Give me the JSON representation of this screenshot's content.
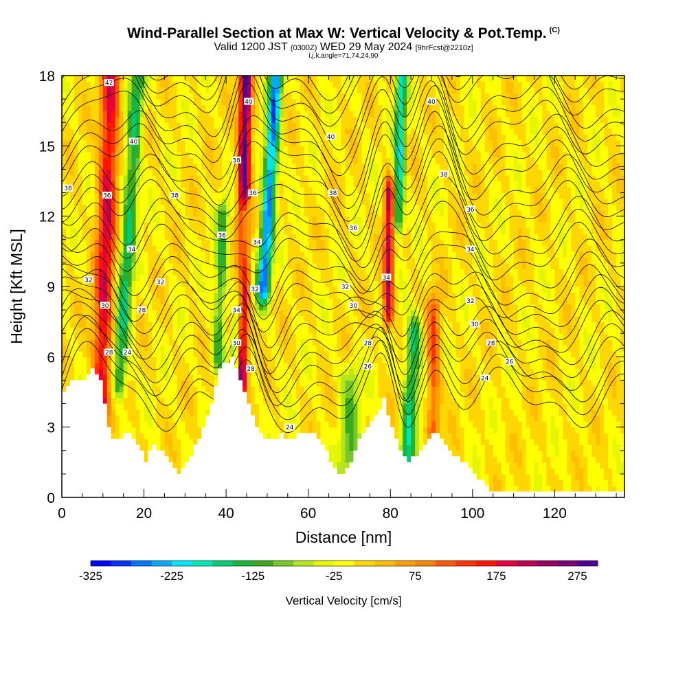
{
  "header": {
    "title": "Wind-Parallel Section at Max W: Vertical Velocity & Pot.Temp.",
    "copyright": "(C)",
    "valid_prefix": "Valid 1200 JST",
    "valid_utc": "(0300Z)",
    "valid_date": "WED 29 May 2024",
    "forecast": "[9hrFcst@2210z]",
    "params": "i,j,k,angle=71,74,24,90"
  },
  "chart_data": {
    "type": "heatmap",
    "xlabel": "Distance [nm]",
    "ylabel": "Height [Kft MSL]",
    "xlim": [
      0,
      137
    ],
    "ylim": [
      0,
      18
    ],
    "x_ticks": [
      0,
      20,
      40,
      60,
      80,
      100,
      120
    ],
    "y_ticks": [
      0,
      3,
      6,
      9,
      12,
      15,
      18
    ],
    "colorbar": {
      "label": "Vertical Velocity [cm/s]",
      "range": [
        -325,
        300
      ],
      "tick_values": [
        -325,
        -225,
        -125,
        -25,
        75,
        175,
        275
      ],
      "tick_labels": [
        "-325",
        "-225",
        "-125",
        "-25",
        "75",
        "175",
        "275"
      ],
      "colors": [
        "#0000ff",
        "#0033ff",
        "#0077ff",
        "#00aaff",
        "#00e6ff",
        "#00e6b4",
        "#00cc78",
        "#19b43c",
        "#3caa1e",
        "#78c828",
        "#b4e61e",
        "#e6f500",
        "#ffff00",
        "#ffd700",
        "#ffbe00",
        "#ffa000",
        "#ff8200",
        "#ff5a00",
        "#ff3200",
        "#ff1400",
        "#e6003c",
        "#be0050",
        "#960064",
        "#780078",
        "#500096"
      ]
    },
    "terrain": [
      [
        0,
        4.5
      ],
      [
        2,
        5
      ],
      [
        5,
        5
      ],
      [
        7,
        5.5
      ],
      [
        9,
        5
      ],
      [
        10,
        4
      ],
      [
        11,
        3
      ],
      [
        12,
        2.6
      ],
      [
        14,
        2.5
      ],
      [
        16,
        2.8
      ],
      [
        18,
        2.2
      ],
      [
        20,
        1.6
      ],
      [
        22,
        2.2
      ],
      [
        24,
        2.0
      ],
      [
        26,
        1.5
      ],
      [
        28,
        1.0
      ],
      [
        30,
        1.5
      ],
      [
        33,
        2.5
      ],
      [
        36,
        4.0
      ],
      [
        38,
        5.5
      ],
      [
        41,
        6.0
      ],
      [
        43,
        5.0
      ],
      [
        45,
        4.0
      ],
      [
        47,
        3.0
      ],
      [
        49,
        2.6
      ],
      [
        51,
        2.5
      ],
      [
        53,
        2.7
      ],
      [
        55,
        2.5
      ],
      [
        57,
        2.7
      ],
      [
        60,
        2.8
      ],
      [
        62,
        2.5
      ],
      [
        64,
        2.0
      ],
      [
        66,
        1.2
      ],
      [
        68,
        1.0
      ],
      [
        70,
        1.5
      ],
      [
        72,
        2.5
      ],
      [
        74,
        3.0
      ],
      [
        76,
        3.5
      ],
      [
        78,
        4.2
      ],
      [
        80,
        3.0
      ],
      [
        82,
        2.0
      ],
      [
        84,
        1.6
      ],
      [
        86,
        1.8
      ],
      [
        88,
        2.2
      ],
      [
        90,
        2.7
      ],
      [
        92,
        2.6
      ],
      [
        95,
        1.8
      ],
      [
        98,
        1.4
      ],
      [
        101,
        0.8
      ],
      [
        104,
        0.3
      ],
      [
        110,
        0.3
      ],
      [
        125,
        0.3
      ],
      [
        133,
        0.3
      ],
      [
        137,
        0.3
      ]
    ],
    "updrafts": [
      {
        "x": 9.5,
        "z0": 4,
        "z1": 18,
        "slope": 0.18,
        "w": 2.2,
        "peak": 190
      },
      {
        "x": 43.5,
        "z0": 5,
        "z1": 18,
        "slope": 0.1,
        "w": 1.5,
        "peak": 290
      },
      {
        "x": 79.5,
        "z0": 8,
        "z1": 13,
        "slope": 0.05,
        "w": 1.2,
        "peak": 210
      },
      {
        "x": 90.5,
        "z0": 3,
        "z1": 8,
        "slope": 0.02,
        "w": 1.5,
        "peak": 120
      }
    ],
    "downdrafts": [
      {
        "x": 14,
        "z0": 5,
        "z1": 18,
        "slope": 0.35,
        "w": 1.8,
        "peak": -150
      },
      {
        "x": 42,
        "z0": 5,
        "z1": 12,
        "slope": 0.35,
        "w": 1.3,
        "peak": -190
      },
      {
        "x": 49,
        "z0": 9,
        "z1": 18,
        "slope": 0.35,
        "w": 1.6,
        "peak": -260
      },
      {
        "x": 84,
        "z0": 1.5,
        "z1": 7,
        "slope": 0.35,
        "w": 1.8,
        "peak": -160
      },
      {
        "x": 82,
        "z0": 12,
        "z1": 18,
        "slope": 0.12,
        "w": 1.3,
        "peak": -190
      },
      {
        "x": 70,
        "z0": 1,
        "z1": 5,
        "slope": 0.1,
        "w": 2.5,
        "peak": -90
      },
      {
        "x": 38,
        "z0": 6,
        "z1": 12,
        "slope": 0.2,
        "w": 1.5,
        "peak": -120
      }
    ],
    "theta_levels": [
      24,
      26,
      28,
      30,
      32,
      34,
      36,
      38,
      40,
      42
    ],
    "contour_labels": [
      {
        "text": "42",
        "x": 11.5,
        "z": 17.7
      },
      {
        "text": "40",
        "x": 17.5,
        "z": 15.2
      },
      {
        "text": "40",
        "x": 45.5,
        "z": 16.9
      },
      {
        "text": "40",
        "x": 65.5,
        "z": 15.4
      },
      {
        "text": "40",
        "x": 90,
        "z": 16.9
      },
      {
        "text": "38",
        "x": 1.5,
        "z": 13.2
      },
      {
        "text": "38",
        "x": 27.5,
        "z": 12.9
      },
      {
        "text": "38",
        "x": 42.5,
        "z": 14.4
      },
      {
        "text": "38",
        "x": 66,
        "z": 13.0
      },
      {
        "text": "38",
        "x": 93,
        "z": 13.8
      },
      {
        "text": "36",
        "x": 11,
        "z": 12.9
      },
      {
        "text": "36",
        "x": 46.5,
        "z": 13.0
      },
      {
        "text": "36",
        "x": 71,
        "z": 11.5
      },
      {
        "text": "36",
        "x": 99.5,
        "z": 12.3
      },
      {
        "text": "36",
        "x": 39,
        "z": 11.2
      },
      {
        "text": "34",
        "x": 17,
        "z": 10.6
      },
      {
        "text": "34",
        "x": 47.5,
        "z": 10.9
      },
      {
        "text": "34",
        "x": 79,
        "z": 9.4
      },
      {
        "text": "34",
        "x": 99.5,
        "z": 10.6
      },
      {
        "text": "34",
        "x": 42.5,
        "z": 8.0
      },
      {
        "text": "32",
        "x": 6.5,
        "z": 9.3
      },
      {
        "text": "32",
        "x": 24,
        "z": 9.2
      },
      {
        "text": "32",
        "x": 47,
        "z": 8.9
      },
      {
        "text": "32",
        "x": 69,
        "z": 9.0
      },
      {
        "text": "32",
        "x": 99.5,
        "z": 8.4
      },
      {
        "text": "30",
        "x": 10.5,
        "z": 8.2
      },
      {
        "text": "30",
        "x": 42.5,
        "z": 6.6
      },
      {
        "text": "30",
        "x": 71,
        "z": 8.2
      },
      {
        "text": "30",
        "x": 100.5,
        "z": 7.4
      },
      {
        "text": "28",
        "x": 19.5,
        "z": 8.0
      },
      {
        "text": "28",
        "x": 11.5,
        "z": 6.2
      },
      {
        "text": "28",
        "x": 46,
        "z": 5.5
      },
      {
        "text": "28",
        "x": 74.5,
        "z": 6.6
      },
      {
        "text": "28",
        "x": 104.5,
        "z": 6.6
      },
      {
        "text": "26",
        "x": 74.5,
        "z": 5.6
      },
      {
        "text": "26",
        "x": 109,
        "z": 5.8
      },
      {
        "text": "24",
        "x": 16,
        "z": 6.2
      },
      {
        "text": "24",
        "x": 55.5,
        "z": 3.0
      },
      {
        "text": "24",
        "x": 103,
        "z": 5.1
      }
    ]
  }
}
